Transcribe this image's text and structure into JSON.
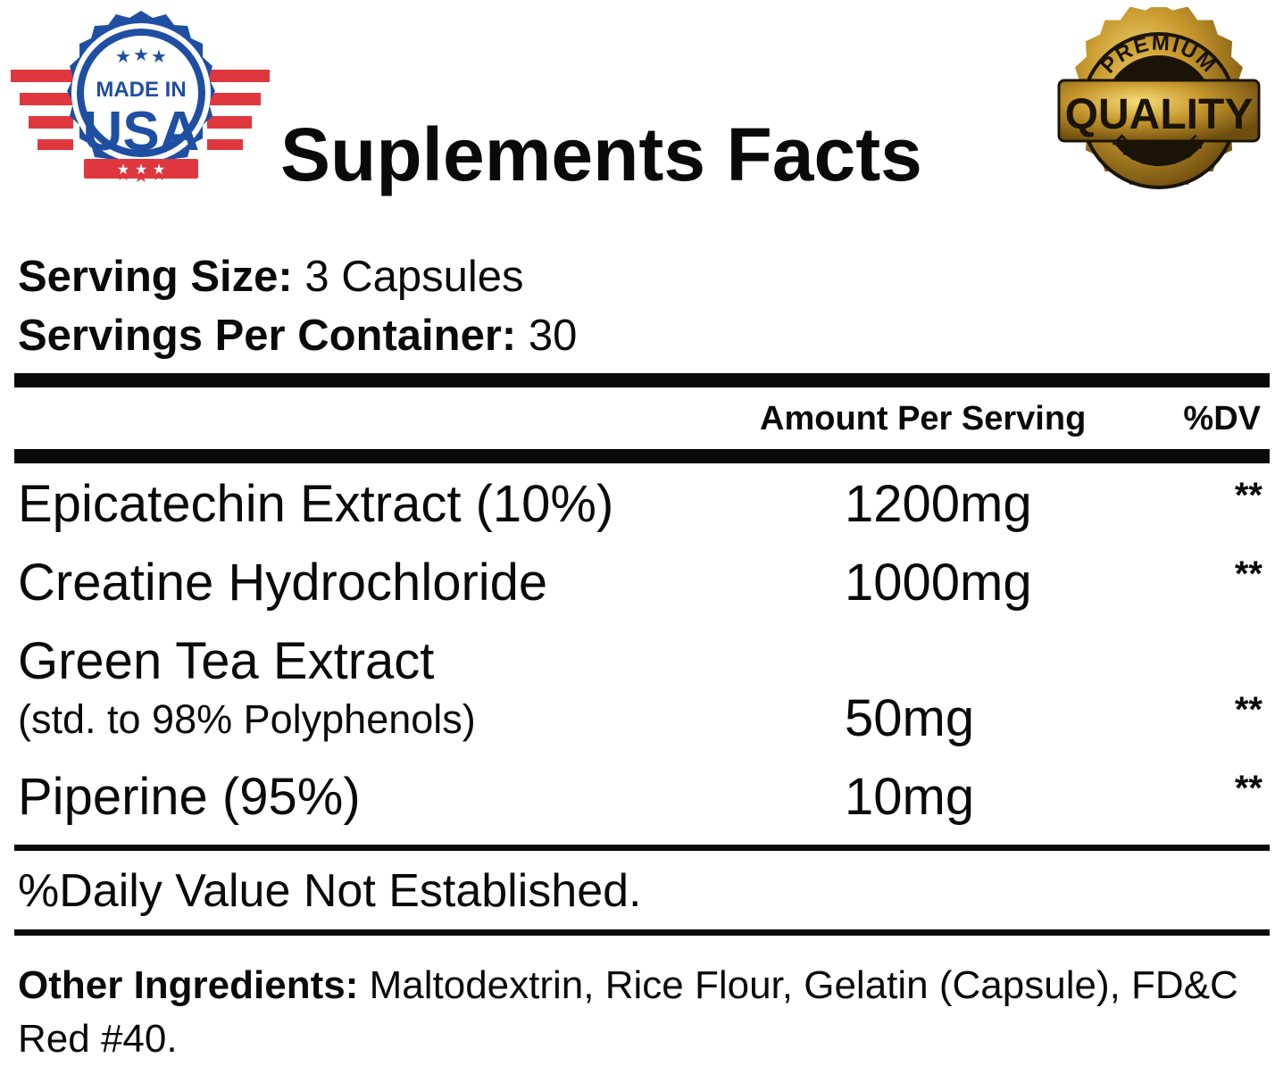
{
  "badges": {
    "usa": {
      "line1": "MADE IN",
      "line2": "USA",
      "colors": {
        "blue": "#1f4fa3",
        "red": "#e0373f"
      }
    },
    "quality": {
      "top": "PREMIUM",
      "center": "QUALITY",
      "bottom": "PRODUCT",
      "colors": {
        "gold": "#c99a2e",
        "dark": "#1a1406"
      }
    }
  },
  "title": "Suplements Facts",
  "serving": {
    "size_label": "Serving Size:",
    "size_value": "3 Capsules",
    "per_container_label": "Servings Per Container:",
    "per_container_value": "30"
  },
  "table": {
    "header_amount": "Amount Per Serving",
    "header_dv": "%DV",
    "rows": [
      {
        "name": "Epicatechin Extract (10%)",
        "amount": "1200mg",
        "dv": "**"
      },
      {
        "name": "Creatine Hydrochloride",
        "amount": "1000mg",
        "dv": "**"
      },
      {
        "name": "Green Tea Extract",
        "subname": "(std. to 98% Polyphenols)",
        "amount": "50mg",
        "dv": "**"
      },
      {
        "name": "Piperine (95%)",
        "amount": "10mg",
        "dv": "**"
      }
    ]
  },
  "footnote": "%Daily Value Not Established.",
  "other_ingredients": {
    "label": "Other Ingredients:",
    "text": "Maltodextrin, Rice Flour, Gelatin (Capsule), FD&C Red #40."
  }
}
